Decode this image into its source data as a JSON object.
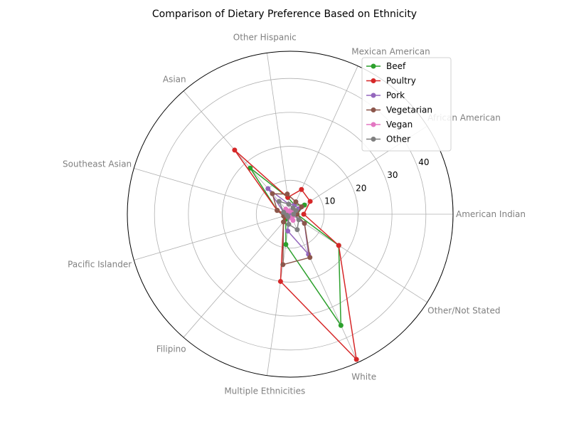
{
  "chart_data": {
    "type": "radar",
    "title": "Comparison of Dietary Preference Based on Ethnicity",
    "categories": [
      "American Indian",
      "African American",
      "Mexican American",
      "Other Hispanic",
      "Asian",
      "Southeast Asian",
      "Pacific Islander",
      "Filipino",
      "Multiple Ethnicities",
      "White",
      "Other/Not Stated"
    ],
    "r_ticks": [
      "10",
      "20",
      "30",
      "40"
    ],
    "r_lim": [
      0,
      48
    ],
    "grid": true,
    "legend_position": "top-right",
    "series": [
      {
        "name": "Beef",
        "color": "#2ca02c",
        "values": [
          2,
          5,
          3,
          5,
          18,
          4,
          1,
          2,
          9,
          36,
          17
        ]
      },
      {
        "name": "Poultry",
        "color": "#d62728",
        "values": [
          4,
          7,
          8,
          5,
          25,
          4,
          1,
          3,
          20,
          47,
          17
        ]
      },
      {
        "name": "Pork",
        "color": "#9467bd",
        "values": [
          1,
          3,
          3,
          3,
          10,
          2,
          0,
          1,
          5,
          13,
          5
        ]
      },
      {
        "name": "Vegetarian",
        "color": "#8c564b",
        "values": [
          2,
          4,
          4,
          6,
          8,
          4,
          2,
          3,
          15,
          14,
          5
        ]
      },
      {
        "name": "Vegan",
        "color": "#e377c2",
        "values": [
          1,
          1,
          1,
          1,
          2,
          1,
          1,
          1,
          1,
          2,
          1
        ]
      },
      {
        "name": "Other",
        "color": "#7f7f7f",
        "values": [
          1,
          2,
          2,
          3,
          5,
          2,
          1,
          1,
          3,
          5,
          3
        ]
      }
    ]
  }
}
